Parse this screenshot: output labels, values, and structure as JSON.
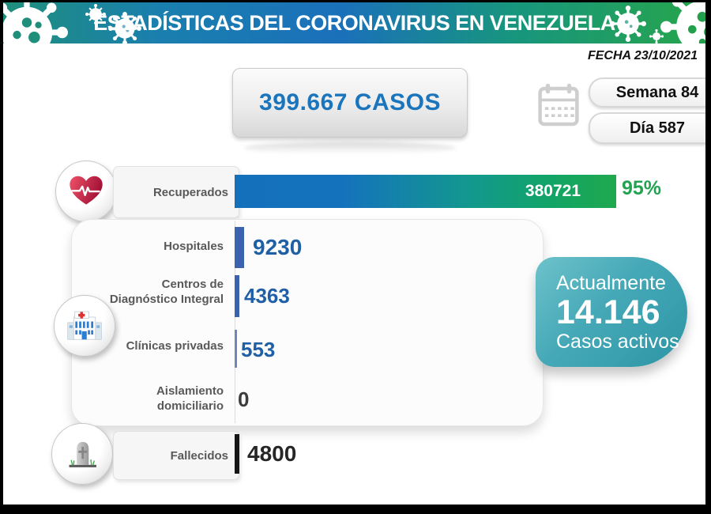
{
  "header": {
    "title": "ESTADÍSTICAS DEL CORONAVIRUS EN VENEZUELA"
  },
  "meta": {
    "date": "FECHA 23/10/2021",
    "week": "Semana 84",
    "day": "Día 587"
  },
  "totals": {
    "cases": "399.667 CASOS"
  },
  "active": {
    "intro": "Actualmente",
    "value": "14.146",
    "caption": "Casos activos"
  },
  "rows": {
    "recuperados": {
      "label": "Recuperados",
      "value": "380721",
      "pct": "95%"
    },
    "hospitales": {
      "label": "Hospitales",
      "value": "9230"
    },
    "cdi": {
      "label": "Centros de\nDiagnóstico Integral",
      "value": "4363"
    },
    "clinicas": {
      "label": "Clínicas privadas",
      "value": "553"
    },
    "aislamiento": {
      "label": "Aislamiento\ndomiciliario",
      "value": "0"
    },
    "fallecidos": {
      "label": "Fallecidos",
      "value": "4800"
    }
  },
  "chart_data": {
    "type": "bar",
    "orientation": "horizontal",
    "title": "ESTADÍSTICAS DEL CORONAVIRUS EN VENEZUELA",
    "categories": [
      "Recuperados",
      "Hospitales",
      "Centros de Diagnóstico Integral",
      "Clínicas privadas",
      "Aislamiento domiciliario",
      "Fallecidos"
    ],
    "values": [
      380721,
      9230,
      4363,
      553,
      0,
      4800
    ],
    "annotations": {
      "recuperados_pct": "95%",
      "total_cases": 399667,
      "active_cases": 14146,
      "week": 84,
      "day": 587,
      "date": "23/10/2021"
    },
    "legend": false,
    "grid": false,
    "colors": {
      "recovered_gradient_start": "#1470bb",
      "recovered_gradient_end": "#1fa84e",
      "facility_bar_blue": "#3a62ae",
      "deaths_bar_black": "#161616",
      "value_text_blue": "#1f5fa6",
      "percent_green": "#23a352",
      "cases_text_blue": "#1b75bc",
      "active_box_teal": "#3fa4b3",
      "banner_blue": "#1b70ba",
      "banner_green": "#27a54b"
    }
  }
}
